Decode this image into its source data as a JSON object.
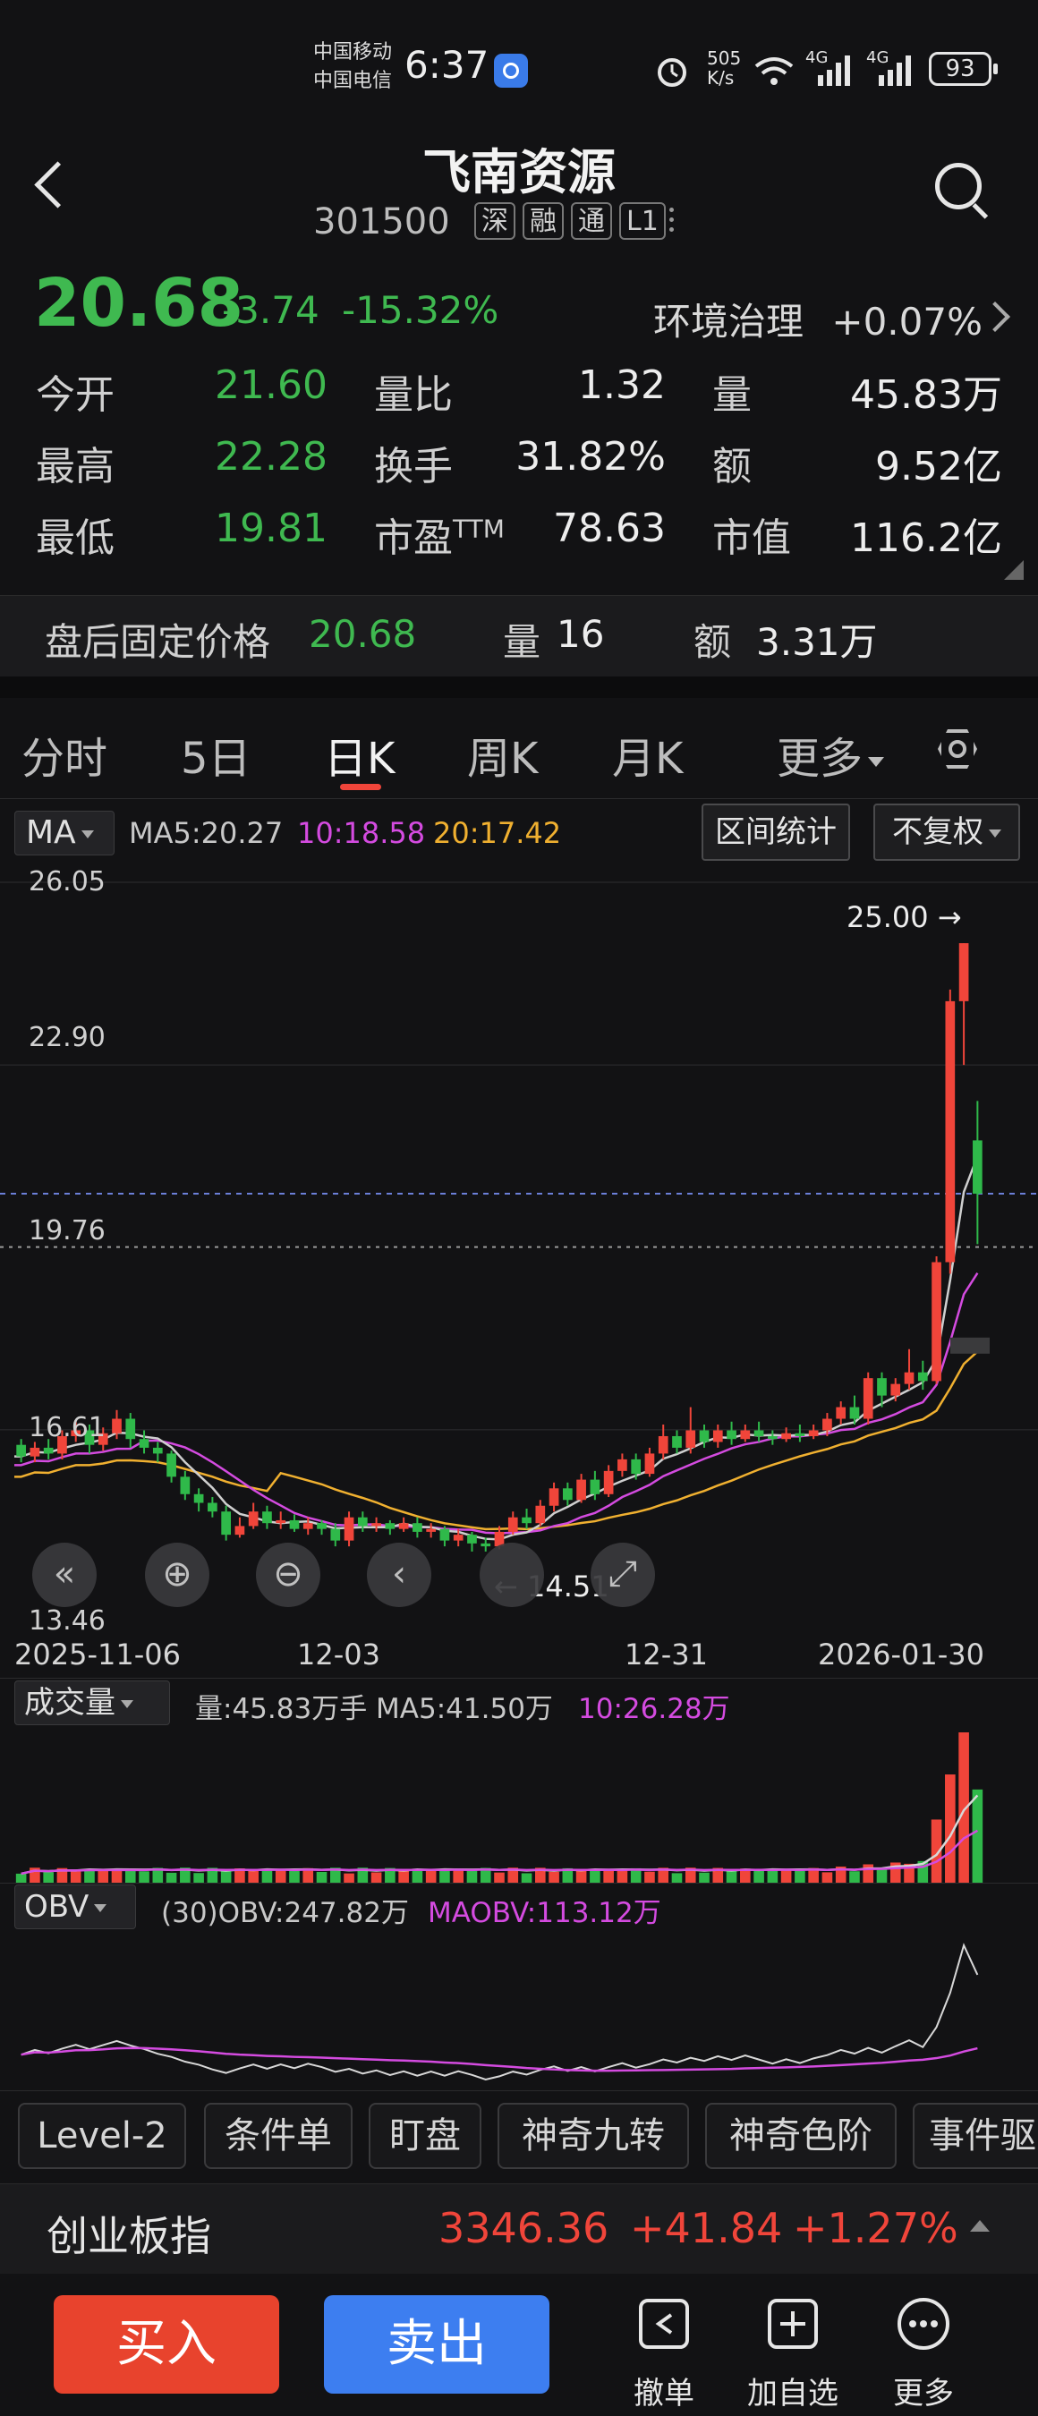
{
  "status_bar": {
    "carrier1": "中国移动",
    "carrier2": "中国电信",
    "time": "6:37",
    "net_speed_top": "505",
    "net_speed_bottom": "K/s",
    "net1": "4G",
    "net2": "4G",
    "battery": "93"
  },
  "header": {
    "title": "飞南资源",
    "code": "301500",
    "tags": [
      "深",
      "融",
      "通",
      "L1"
    ]
  },
  "quote": {
    "price": "20.68",
    "change": "-3.74",
    "change_pct": "-15.32%",
    "sector": "环境治理",
    "sector_pct": "+0.07%",
    "rows": [
      {
        "l1": "今开",
        "v1": "21.60",
        "l2": "量比",
        "v2": "1.32",
        "l3": "量",
        "v3": "45.83万"
      },
      {
        "l1": "最高",
        "v1": "22.28",
        "l2": "换手",
        "v2": "31.82%",
        "l3": "额",
        "v3": "9.52亿"
      },
      {
        "l1": "最低",
        "v1": "19.81",
        "l2": "市盈",
        "v2": "78.63",
        "l3": "市值",
        "v3": "116.2亿"
      }
    ],
    "pe_sup": "TTM"
  },
  "after_hours": {
    "label": "盘后固定价格",
    "price": "20.68",
    "vol_label": "量",
    "vol": "16",
    "amt_label": "额",
    "amt": "3.31万"
  },
  "tabs": [
    "分时",
    "5日",
    "日K",
    "周K",
    "月K",
    "更多"
  ],
  "active_tab": "日K",
  "kline": {
    "ma_button": "MA",
    "ma5": "MA5:20.27",
    "ma10": "10:18.58",
    "ma20": "20:17.42",
    "range_stats": "区间统计",
    "adjust": "不复权",
    "y_labels": [
      "26.05",
      "22.90",
      "19.76",
      "16.61",
      "13.46"
    ],
    "high_marker": "25.00 →",
    "low_marker": "← 14.51",
    "dates": [
      "2025-11-06",
      "12-03",
      "12-31",
      "2026-01-30"
    ],
    "colors": {
      "up": "#f0453a",
      "down": "#2fb94a",
      "ma5": "#cfcfcf",
      "ma10": "#d44be0",
      "ma20": "#f0b030"
    }
  },
  "volume": {
    "button": "成交量",
    "text1": "量:45.83万手 MA5:41.50万",
    "text2": "10:26.28万"
  },
  "obv": {
    "button": "OBV",
    "text1": "(30)OBV:247.82万",
    "text2": "MAOBV:113.12万"
  },
  "chips": [
    "Level-2",
    "条件单",
    "盯盘",
    "神奇九转",
    "神奇色阶",
    "事件驱"
  ],
  "index_bar": {
    "name": "创业板指",
    "value": "3346.36",
    "change": "+41.84",
    "change_pct": "+1.27%"
  },
  "bottom": {
    "buy": "买入",
    "sell": "卖出",
    "tools": [
      "撤单",
      "加自选",
      "更多"
    ]
  },
  "chart_data": {
    "type": "candlestick",
    "ylim": [
      13.46,
      26.05
    ],
    "x_labels": [
      "2025-11-06",
      "12-03",
      "12-31",
      "2026-01-30"
    ],
    "candles": [
      [
        16.35,
        16.15,
        16.45,
        16.05
      ],
      [
        16.15,
        16.3,
        16.4,
        16.05
      ],
      [
        16.3,
        16.2,
        16.45,
        16.1
      ],
      [
        16.2,
        16.5,
        16.6,
        16.1
      ],
      [
        16.5,
        16.6,
        16.75,
        16.4
      ],
      [
        16.6,
        16.35,
        16.7,
        16.2
      ],
      [
        16.35,
        16.55,
        16.65,
        16.25
      ],
      [
        16.55,
        16.8,
        16.95,
        16.45
      ],
      [
        16.8,
        16.45,
        16.9,
        16.3
      ],
      [
        16.45,
        16.3,
        16.6,
        16.2
      ],
      [
        16.3,
        16.2,
        16.4,
        16.05
      ],
      [
        16.2,
        15.8,
        16.25,
        15.7
      ],
      [
        15.8,
        15.5,
        15.9,
        15.4
      ],
      [
        15.5,
        15.35,
        15.6,
        15.2
      ],
      [
        15.35,
        15.2,
        15.45,
        15.1
      ],
      [
        15.2,
        14.8,
        15.3,
        14.7
      ],
      [
        14.8,
        14.95,
        15.1,
        14.75
      ],
      [
        14.95,
        15.2,
        15.35,
        14.9
      ],
      [
        15.2,
        15.0,
        15.3,
        14.9
      ],
      [
        15.0,
        15.05,
        15.2,
        14.9
      ],
      [
        15.05,
        14.9,
        15.15,
        14.85
      ],
      [
        14.9,
        15.0,
        15.1,
        14.8
      ],
      [
        15.0,
        14.9,
        15.05,
        14.8
      ],
      [
        14.9,
        14.7,
        15.0,
        14.6
      ],
      [
        14.7,
        15.1,
        15.2,
        14.6
      ],
      [
        15.1,
        14.95,
        15.2,
        14.85
      ],
      [
        14.95,
        15.0,
        15.1,
        14.85
      ],
      [
        15.0,
        14.9,
        15.05,
        14.8
      ],
      [
        14.9,
        15.0,
        15.1,
        14.85
      ],
      [
        15.0,
        14.85,
        15.1,
        14.75
      ],
      [
        14.85,
        14.9,
        15.0,
        14.75
      ],
      [
        14.9,
        14.7,
        14.95,
        14.6
      ],
      [
        14.7,
        14.8,
        14.9,
        14.6
      ],
      [
        14.8,
        14.65,
        14.85,
        14.51
      ],
      [
        14.65,
        14.6,
        14.75,
        14.51
      ],
      [
        14.6,
        14.85,
        14.95,
        14.55
      ],
      [
        14.85,
        15.1,
        15.2,
        14.8
      ],
      [
        15.1,
        15.0,
        15.25,
        14.9
      ],
      [
        15.0,
        15.3,
        15.4,
        14.95
      ],
      [
        15.3,
        15.6,
        15.7,
        15.2
      ],
      [
        15.6,
        15.4,
        15.7,
        15.3
      ],
      [
        15.4,
        15.75,
        15.85,
        15.35
      ],
      [
        15.75,
        15.5,
        15.9,
        15.4
      ],
      [
        15.5,
        15.9,
        16.0,
        15.45
      ],
      [
        15.9,
        16.1,
        16.2,
        15.8
      ],
      [
        16.1,
        15.85,
        16.2,
        15.75
      ],
      [
        15.85,
        16.2,
        16.3,
        15.8
      ],
      [
        16.2,
        16.5,
        16.7,
        16.1
      ],
      [
        16.5,
        16.3,
        16.6,
        16.2
      ],
      [
        16.3,
        16.6,
        17.0,
        16.2
      ],
      [
        16.6,
        16.4,
        16.7,
        16.3
      ],
      [
        16.4,
        16.6,
        16.7,
        16.3
      ],
      [
        16.6,
        16.45,
        16.75,
        16.35
      ],
      [
        16.45,
        16.6,
        16.7,
        16.4
      ],
      [
        16.6,
        16.5,
        16.75,
        16.4
      ],
      [
        16.5,
        16.45,
        16.6,
        16.35
      ],
      [
        16.45,
        16.55,
        16.65,
        16.4
      ],
      [
        16.55,
        16.5,
        16.7,
        16.4
      ],
      [
        16.5,
        16.6,
        16.7,
        16.45
      ],
      [
        16.6,
        16.8,
        16.9,
        16.5
      ],
      [
        16.8,
        17.0,
        17.1,
        16.7
      ],
      [
        17.0,
        16.8,
        17.2,
        16.7
      ],
      [
        16.8,
        17.5,
        17.6,
        16.7
      ],
      [
        17.5,
        17.2,
        17.6,
        17.0
      ],
      [
        17.2,
        17.4,
        17.5,
        17.1
      ],
      [
        17.4,
        17.6,
        18.0,
        17.3
      ],
      [
        17.6,
        17.45,
        17.8,
        17.3
      ],
      [
        17.45,
        19.5,
        19.6,
        17.4
      ],
      [
        19.5,
        24.0,
        24.2,
        19.3
      ],
      [
        24.0,
        25.0,
        25.0,
        22.9
      ],
      [
        21.6,
        20.68,
        22.28,
        19.81
      ]
    ],
    "volume_ma": true,
    "obv_series": [
      "OBV",
      "MAOBV"
    ]
  }
}
